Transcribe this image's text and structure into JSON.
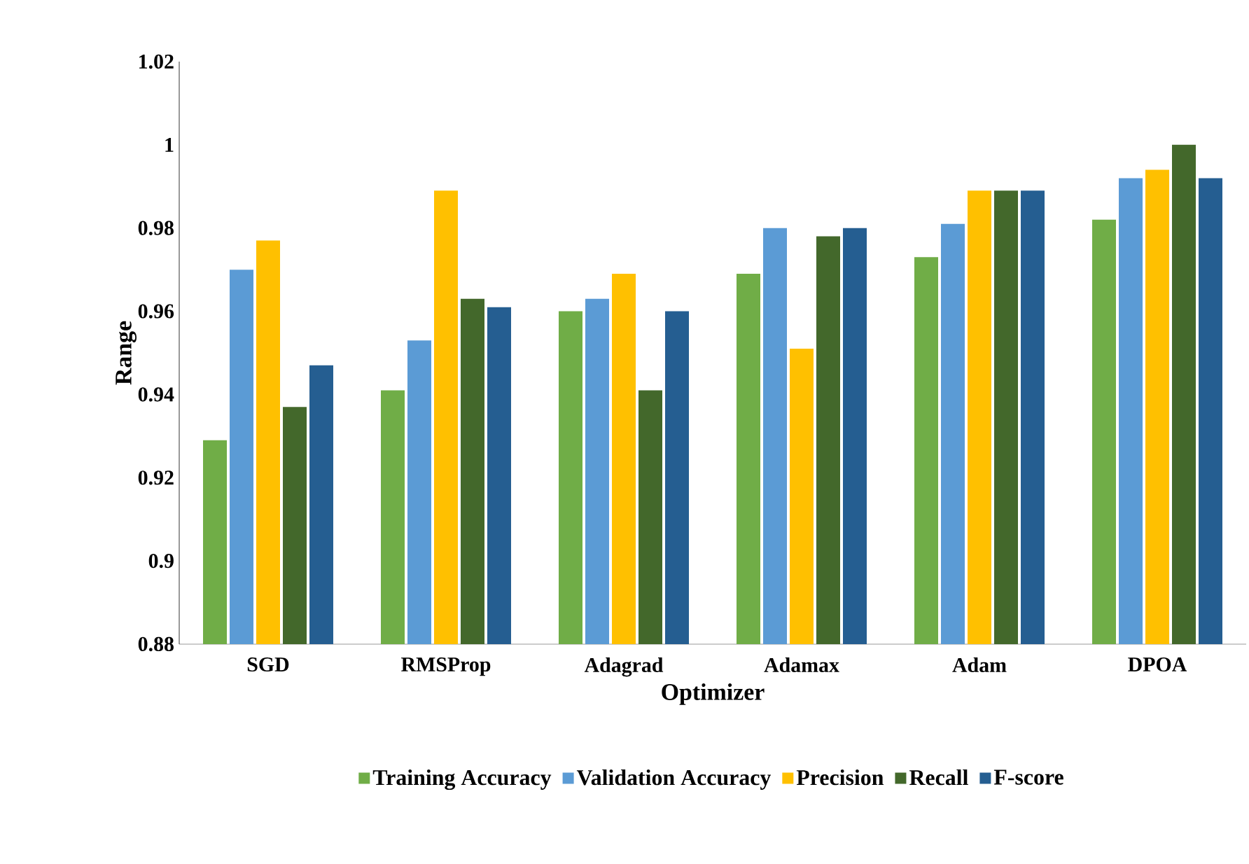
{
  "chart_data": {
    "type": "bar",
    "xlabel": "Optimizer",
    "ylabel": "Range",
    "categories": [
      "SGD",
      "RMSProp",
      "Adagrad",
      "Adamax",
      "Adam",
      "DPOA"
    ],
    "series": [
      {
        "name": "Training Accuracy",
        "color": "#70ad47",
        "values": [
          0.929,
          0.941,
          0.96,
          0.969,
          0.973,
          0.982
        ]
      },
      {
        "name": "Validation Accuracy",
        "color": "#5b9bd5",
        "values": [
          0.97,
          0.953,
          0.963,
          0.98,
          0.981,
          0.992
        ]
      },
      {
        "name": "Precision",
        "color": "#ffc000",
        "values": [
          0.977,
          0.989,
          0.969,
          0.951,
          0.989,
          0.994
        ]
      },
      {
        "name": "Recall",
        "color": "#43682b",
        "values": [
          0.937,
          0.963,
          0.941,
          0.978,
          0.989,
          1.0
        ]
      },
      {
        "name": "F-score",
        "color": "#255e91",
        "values": [
          0.947,
          0.961,
          0.96,
          0.98,
          0.989,
          0.992
        ]
      }
    ],
    "ylim": [
      0.88,
      1.02
    ],
    "yticks": [
      0.88,
      0.9,
      0.92,
      0.94,
      0.96,
      0.98,
      1,
      1.02
    ],
    "legend": "bottom"
  }
}
